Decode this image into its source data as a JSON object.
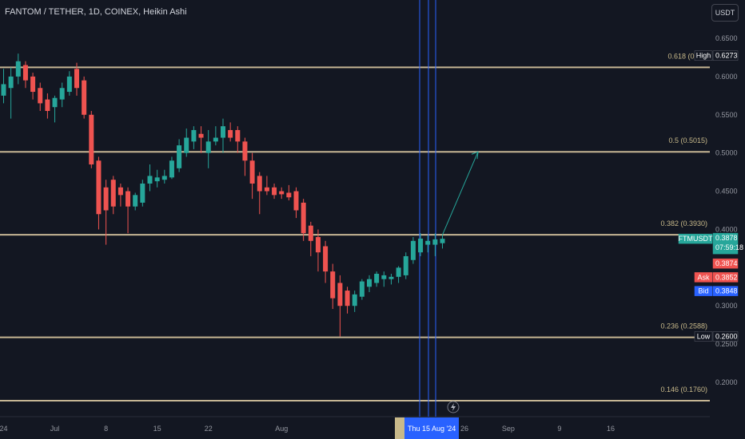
{
  "header": {
    "title": "FANTOM / TETHER, 1D, COINEX, Heikin Ashi",
    "currency": "USDT"
  },
  "colors": {
    "background": "#131722",
    "up": "#26a69a",
    "down": "#ef5350",
    "fib_line": "#e6d2a8",
    "cursor_line": "#2962ff",
    "arrow": "#26a69a"
  },
  "chart_data": {
    "type": "candlestick",
    "style": "Heikin Ashi",
    "ylim": [
      0.16,
      0.665
    ],
    "y_ticks": [
      0.65,
      0.6,
      0.55,
      0.5,
      0.45,
      0.4,
      0.3,
      0.25,
      0.2
    ],
    "x_ticks": [
      {
        "label": "24",
        "day": 0
      },
      {
        "label": "Jul",
        "day": 7
      },
      {
        "label": "8",
        "day": 14
      },
      {
        "label": "15",
        "day": 21
      },
      {
        "label": "22",
        "day": 28
      },
      {
        "label": "Aug",
        "day": 38
      },
      {
        "label": "19",
        "day": 56
      },
      {
        "label": "26",
        "day": 63
      },
      {
        "label": "Sep",
        "day": 69
      },
      {
        "label": "9",
        "day": 76
      },
      {
        "label": "16",
        "day": 83
      }
    ],
    "fib_levels": [
      {
        "label": "0.618 (0.6…",
        "value": 0.612
      },
      {
        "label": "0.5 (0.5015)",
        "value": 0.5015
      },
      {
        "label": "0.382 (0.3930)",
        "value": 0.393
      },
      {
        "label": "0.236 (0.2588)",
        "value": 0.2588
      },
      {
        "label": "0.146 (0.1760)",
        "value": 0.176
      }
    ],
    "candles": [
      {
        "o": 0.575,
        "h": 0.61,
        "l": 0.565,
        "c": 0.59
      },
      {
        "o": 0.585,
        "h": 0.612,
        "l": 0.545,
        "c": 0.6
      },
      {
        "o": 0.6,
        "h": 0.63,
        "l": 0.59,
        "c": 0.62
      },
      {
        "o": 0.615,
        "h": 0.62,
        "l": 0.585,
        "c": 0.595
      },
      {
        "o": 0.6,
        "h": 0.605,
        "l": 0.57,
        "c": 0.58
      },
      {
        "o": 0.585,
        "h": 0.592,
        "l": 0.555,
        "c": 0.565
      },
      {
        "o": 0.57,
        "h": 0.578,
        "l": 0.545,
        "c": 0.555
      },
      {
        "o": 0.56,
        "h": 0.575,
        "l": 0.54,
        "c": 0.572
      },
      {
        "o": 0.57,
        "h": 0.592,
        "l": 0.56,
        "c": 0.585
      },
      {
        "o": 0.58,
        "h": 0.607,
        "l": 0.575,
        "c": 0.6
      },
      {
        "o": 0.61,
        "h": 0.618,
        "l": 0.575,
        "c": 0.585
      },
      {
        "o": 0.595,
        "h": 0.6,
        "l": 0.545,
        "c": 0.55
      },
      {
        "o": 0.55,
        "h": 0.555,
        "l": 0.48,
        "c": 0.485
      },
      {
        "o": 0.49,
        "h": 0.495,
        "l": 0.4,
        "c": 0.42
      },
      {
        "o": 0.455,
        "h": 0.465,
        "l": 0.38,
        "c": 0.425
      },
      {
        "o": 0.465,
        "h": 0.47,
        "l": 0.42,
        "c": 0.43
      },
      {
        "o": 0.455,
        "h": 0.46,
        "l": 0.43,
        "c": 0.445
      },
      {
        "o": 0.45,
        "h": 0.455,
        "l": 0.395,
        "c": 0.43
      },
      {
        "o": 0.43,
        "h": 0.448,
        "l": 0.425,
        "c": 0.445
      },
      {
        "o": 0.435,
        "h": 0.465,
        "l": 0.43,
        "c": 0.46
      },
      {
        "o": 0.46,
        "h": 0.485,
        "l": 0.45,
        "c": 0.47
      },
      {
        "o": 0.463,
        "h": 0.478,
        "l": 0.455,
        "c": 0.468
      },
      {
        "o": 0.465,
        "h": 0.478,
        "l": 0.46,
        "c": 0.47
      },
      {
        "o": 0.468,
        "h": 0.495,
        "l": 0.466,
        "c": 0.49
      },
      {
        "o": 0.48,
        "h": 0.518,
        "l": 0.475,
        "c": 0.51
      },
      {
        "o": 0.5,
        "h": 0.532,
        "l": 0.495,
        "c": 0.52
      },
      {
        "o": 0.515,
        "h": 0.535,
        "l": 0.505,
        "c": 0.53
      },
      {
        "o": 0.525,
        "h": 0.535,
        "l": 0.5,
        "c": 0.52
      },
      {
        "o": 0.5,
        "h": 0.53,
        "l": 0.48,
        "c": 0.515
      },
      {
        "o": 0.515,
        "h": 0.535,
        "l": 0.51,
        "c": 0.52
      },
      {
        "o": 0.52,
        "h": 0.545,
        "l": 0.5,
        "c": 0.535
      },
      {
        "o": 0.53,
        "h": 0.54,
        "l": 0.515,
        "c": 0.52
      },
      {
        "o": 0.53,
        "h": 0.535,
        "l": 0.5,
        "c": 0.515
      },
      {
        "o": 0.515,
        "h": 0.52,
        "l": 0.47,
        "c": 0.49
      },
      {
        "o": 0.49,
        "h": 0.5,
        "l": 0.44,
        "c": 0.46
      },
      {
        "o": 0.47,
        "h": 0.475,
        "l": 0.42,
        "c": 0.45
      },
      {
        "o": 0.455,
        "h": 0.47,
        "l": 0.445,
        "c": 0.45
      },
      {
        "o": 0.455,
        "h": 0.46,
        "l": 0.44,
        "c": 0.445
      },
      {
        "o": 0.45,
        "h": 0.455,
        "l": 0.44,
        "c": 0.446
      },
      {
        "o": 0.448,
        "h": 0.458,
        "l": 0.438,
        "c": 0.442
      },
      {
        "o": 0.45,
        "h": 0.455,
        "l": 0.415,
        "c": 0.425
      },
      {
        "o": 0.435,
        "h": 0.44,
        "l": 0.385,
        "c": 0.395
      },
      {
        "o": 0.405,
        "h": 0.41,
        "l": 0.365,
        "c": 0.385
      },
      {
        "o": 0.39,
        "h": 0.4,
        "l": 0.345,
        "c": 0.37
      },
      {
        "o": 0.378,
        "h": 0.385,
        "l": 0.33,
        "c": 0.345
      },
      {
        "o": 0.345,
        "h": 0.355,
        "l": 0.296,
        "c": 0.31
      },
      {
        "o": 0.33,
        "h": 0.34,
        "l": 0.26,
        "c": 0.3
      },
      {
        "o": 0.32,
        "h": 0.325,
        "l": 0.29,
        "c": 0.3
      },
      {
        "o": 0.3,
        "h": 0.32,
        "l": 0.292,
        "c": 0.315
      },
      {
        "o": 0.312,
        "h": 0.335,
        "l": 0.308,
        "c": 0.332
      },
      {
        "o": 0.325,
        "h": 0.34,
        "l": 0.318,
        "c": 0.335
      },
      {
        "o": 0.33,
        "h": 0.345,
        "l": 0.325,
        "c": 0.342
      },
      {
        "o": 0.335,
        "h": 0.345,
        "l": 0.325,
        "c": 0.34
      },
      {
        "o": 0.335,
        "h": 0.342,
        "l": 0.328,
        "c": 0.338
      },
      {
        "o": 0.338,
        "h": 0.352,
        "l": 0.33,
        "c": 0.35
      },
      {
        "o": 0.34,
        "h": 0.37,
        "l": 0.335,
        "c": 0.365
      },
      {
        "o": 0.36,
        "h": 0.39,
        "l": 0.355,
        "c": 0.385
      },
      {
        "o": 0.37,
        "h": 0.395,
        "l": 0.365,
        "c": 0.388
      },
      {
        "o": 0.38,
        "h": 0.392,
        "l": 0.37,
        "c": 0.385
      },
      {
        "o": 0.38,
        "h": 0.395,
        "l": 0.365,
        "c": 0.387
      },
      {
        "o": 0.382,
        "h": 0.393,
        "l": 0.375,
        "c": 0.3878
      }
    ],
    "projection_arrow": {
      "from": 0.393,
      "to": 0.5015
    },
    "price_tags": [
      {
        "label": "High",
        "value": "0.6273",
        "color": "#131722",
        "pos": 0.6273
      },
      {
        "label": "FTMUSDT",
        "value": "0.3878",
        "sub": "07:59:18",
        "color": "#26a69a",
        "pos": 0.3878
      },
      {
        "label": "",
        "value": "0.3874",
        "color": "#ef5350",
        "pos": 0.3554
      },
      {
        "label": "Ask",
        "value": "0.3852",
        "color": "#ef5350",
        "pos": 0.3374
      },
      {
        "label": "Bid",
        "value": "0.3848",
        "color": "#2962ff",
        "pos": 0.3194
      },
      {
        "label": "Low",
        "value": "0.2600",
        "color": "#131722",
        "pos": 0.26
      }
    ],
    "cursor_label": "Thu 15 Aug '24"
  }
}
